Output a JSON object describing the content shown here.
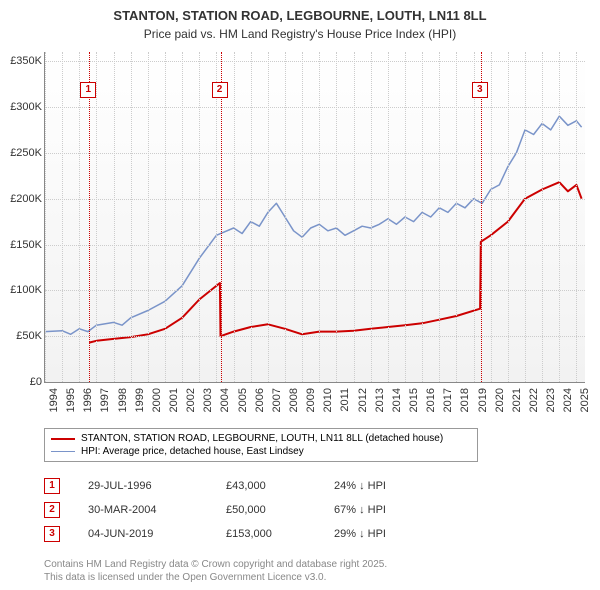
{
  "title_line1": "STANTON, STATION ROAD, LEGBOURNE, LOUTH, LN11 8LL",
  "title_line2": "Price paid vs. HM Land Registry's House Price Index (HPI)",
  "chart": {
    "type": "line",
    "x_years": [
      1994,
      1995,
      1996,
      1997,
      1998,
      1999,
      2000,
      2001,
      2002,
      2003,
      2004,
      2005,
      2006,
      2007,
      2008,
      2009,
      2010,
      2011,
      2012,
      2013,
      2014,
      2015,
      2016,
      2017,
      2018,
      2019,
      2020,
      2021,
      2022,
      2023,
      2024,
      2025
    ],
    "xlim": [
      1994,
      2025.5
    ],
    "ylim": [
      0,
      360000
    ],
    "ytick_step": 50000,
    "yticks_labels": [
      "£0",
      "£50K",
      "£100K",
      "£150K",
      "£200K",
      "£250K",
      "£300K",
      "£350K"
    ],
    "grid_color": "#cccccc",
    "background_gradient": [
      "#ffffff",
      "#f2f2f2"
    ],
    "series": [
      {
        "name": "price_paid",
        "label": "STANTON, STATION ROAD, LEGBOURNE, LOUTH, LN11 8LL (detached house)",
        "color": "#cc0000",
        "line_width": 2,
        "points": [
          [
            1996.58,
            43000
          ],
          [
            1997,
            45000
          ],
          [
            1998,
            47000
          ],
          [
            1999,
            49000
          ],
          [
            2000,
            52000
          ],
          [
            2001,
            58000
          ],
          [
            2002,
            70000
          ],
          [
            2003,
            90000
          ],
          [
            2004.2,
            108000
          ],
          [
            2004.24,
            50000
          ],
          [
            2005,
            55000
          ],
          [
            2006,
            60000
          ],
          [
            2007,
            63000
          ],
          [
            2008,
            58000
          ],
          [
            2009,
            52000
          ],
          [
            2010,
            55000
          ],
          [
            2011,
            55000
          ],
          [
            2012,
            56000
          ],
          [
            2013,
            58000
          ],
          [
            2014,
            60000
          ],
          [
            2015,
            62000
          ],
          [
            2016,
            64000
          ],
          [
            2017,
            68000
          ],
          [
            2018,
            72000
          ],
          [
            2019.38,
            80000
          ],
          [
            2019.42,
            153000
          ],
          [
            2020,
            160000
          ],
          [
            2021,
            175000
          ],
          [
            2022,
            200000
          ],
          [
            2023,
            210000
          ],
          [
            2024,
            218000
          ],
          [
            2024.5,
            208000
          ],
          [
            2025,
            215000
          ],
          [
            2025.3,
            200000
          ]
        ]
      },
      {
        "name": "hpi",
        "label": "HPI: Average price, detached house, East Lindsey",
        "color": "#7a94c9",
        "line_width": 1.5,
        "points": [
          [
            1994,
            55000
          ],
          [
            1995,
            56000
          ],
          [
            1995.5,
            52000
          ],
          [
            1996,
            58000
          ],
          [
            1996.5,
            55000
          ],
          [
            1997,
            62000
          ],
          [
            1998,
            65000
          ],
          [
            1998.5,
            62000
          ],
          [
            1999,
            70000
          ],
          [
            2000,
            78000
          ],
          [
            2001,
            88000
          ],
          [
            2002,
            105000
          ],
          [
            2003,
            135000
          ],
          [
            2004,
            160000
          ],
          [
            2005,
            168000
          ],
          [
            2005.5,
            162000
          ],
          [
            2006,
            175000
          ],
          [
            2006.5,
            170000
          ],
          [
            2007,
            185000
          ],
          [
            2007.5,
            195000
          ],
          [
            2008,
            180000
          ],
          [
            2008.5,
            165000
          ],
          [
            2009,
            158000
          ],
          [
            2009.5,
            168000
          ],
          [
            2010,
            172000
          ],
          [
            2010.5,
            165000
          ],
          [
            2011,
            168000
          ],
          [
            2011.5,
            160000
          ],
          [
            2012,
            165000
          ],
          [
            2012.5,
            170000
          ],
          [
            2013,
            168000
          ],
          [
            2013.5,
            172000
          ],
          [
            2014,
            178000
          ],
          [
            2014.5,
            172000
          ],
          [
            2015,
            180000
          ],
          [
            2015.5,
            175000
          ],
          [
            2016,
            185000
          ],
          [
            2016.5,
            180000
          ],
          [
            2017,
            190000
          ],
          [
            2017.5,
            185000
          ],
          [
            2018,
            195000
          ],
          [
            2018.5,
            190000
          ],
          [
            2019,
            200000
          ],
          [
            2019.5,
            195000
          ],
          [
            2020,
            210000
          ],
          [
            2020.5,
            215000
          ],
          [
            2021,
            235000
          ],
          [
            2021.5,
            250000
          ],
          [
            2022,
            275000
          ],
          [
            2022.5,
            270000
          ],
          [
            2023,
            282000
          ],
          [
            2023.5,
            275000
          ],
          [
            2024,
            290000
          ],
          [
            2024.5,
            280000
          ],
          [
            2025,
            285000
          ],
          [
            2025.3,
            278000
          ]
        ]
      }
    ],
    "markers": [
      {
        "num": "1",
        "year": 1996.58,
        "box_y_offset": 30
      },
      {
        "num": "2",
        "year": 2004.24,
        "box_y_offset": 30
      },
      {
        "num": "3",
        "year": 2019.42,
        "box_y_offset": 30
      }
    ],
    "marker_color": "#cc0000"
  },
  "legend": {
    "rows": [
      {
        "color": "#cc0000",
        "width": 2,
        "label_key": "chart.series.0.label"
      },
      {
        "color": "#7a94c9",
        "width": 1.5,
        "label_key": "chart.series.1.label"
      }
    ]
  },
  "sales": [
    {
      "num": "1",
      "date": "29-JUL-1996",
      "price": "£43,000",
      "delta": "24% ↓ HPI"
    },
    {
      "num": "2",
      "date": "30-MAR-2004",
      "price": "£50,000",
      "delta": "67% ↓ HPI"
    },
    {
      "num": "3",
      "date": "04-JUN-2019",
      "price": "£153,000",
      "delta": "29% ↓ HPI"
    }
  ],
  "footer_line1": "Contains HM Land Registry data © Crown copyright and database right 2025.",
  "footer_line2": "This data is licensed under the Open Government Licence v3.0."
}
